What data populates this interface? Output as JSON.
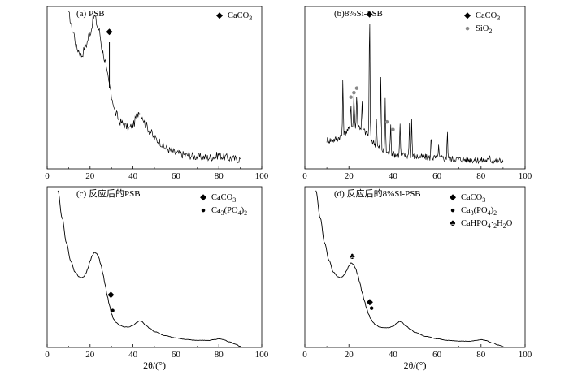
{
  "chart_data": [
    {
      "type": "line",
      "title": "(a) PSB",
      "xlim": [
        0,
        100
      ],
      "xticks": [
        "0",
        "20",
        "40",
        "60",
        "80",
        "100"
      ],
      "grid": false,
      "legend": [
        {
          "marker": "◆",
          "label": "CaCO3"
        }
      ],
      "x": [
        10,
        12,
        14,
        16,
        18,
        20,
        22,
        24,
        26,
        27,
        28,
        29,
        30,
        32,
        34,
        36,
        38,
        40,
        42,
        43,
        44,
        46,
        48,
        50,
        52,
        55,
        58,
        60,
        65,
        70,
        75,
        78,
        80,
        82,
        85,
        88,
        90
      ],
      "values": [
        95,
        85,
        74,
        70,
        76,
        84,
        94,
        86,
        72,
        66,
        58,
        52,
        44,
        34,
        29,
        27,
        25,
        27,
        33,
        36,
        33,
        27,
        23,
        19,
        17,
        13,
        11,
        9.5,
        8.5,
        7.5,
        7,
        7.5,
        8.5,
        7.5,
        6.5,
        6,
        6
      ],
      "markers": [
        {
          "x": 29,
          "value": 83,
          "symbol": "◆"
        }
      ]
    },
    {
      "type": "line",
      "title": "(b)8%Si-PSB",
      "xlim": [
        0,
        100
      ],
      "xticks": [
        "0",
        "20",
        "40",
        "60",
        "80",
        "100"
      ],
      "grid": false,
      "legend": [
        {
          "marker": "◆",
          "label": "CaCO3"
        },
        {
          "marker": "●",
          "label": "SiO2"
        }
      ],
      "peaks": [
        {
          "x": 17.3,
          "h": 48
        },
        {
          "x": 20.9,
          "h": 24
        },
        {
          "x": 22.3,
          "h": 30
        },
        {
          "x": 23.6,
          "h": 30
        },
        {
          "x": 26.0,
          "h": 24
        },
        {
          "x": 29.4,
          "h": 118
        },
        {
          "x": 32.5,
          "h": 26
        },
        {
          "x": 34.5,
          "h": 64
        },
        {
          "x": 36.5,
          "h": 46
        },
        {
          "x": 39.0,
          "h": 28
        },
        {
          "x": 43.2,
          "h": 28
        },
        {
          "x": 47.5,
          "h": 30
        },
        {
          "x": 48.5,
          "h": 34
        },
        {
          "x": 57.4,
          "h": 20
        },
        {
          "x": 60.7,
          "h": 12
        },
        {
          "x": 64.7,
          "h": 26
        },
        {
          "x": 84.0,
          "h": 6
        }
      ],
      "markers": [
        {
          "x": 29.4,
          "value": 136,
          "symbol": "◆"
        },
        {
          "x": 20.9,
          "value": 62,
          "symbol": "●"
        },
        {
          "x": 22.3,
          "value": 66,
          "symbol": "●"
        },
        {
          "x": 23.6,
          "value": 70,
          "symbol": "●"
        },
        {
          "x": 37.3,
          "value": 40,
          "symbol": "●"
        },
        {
          "x": 40.0,
          "value": 33,
          "symbol": "●"
        }
      ]
    },
    {
      "type": "line",
      "title": "(c) 反应后的PSB",
      "xlim": [
        0,
        100
      ],
      "xticks": [
        "0",
        "20",
        "40",
        "60",
        "80",
        "100"
      ],
      "xlabel": "2θ/(°)",
      "grid": false,
      "legend": [
        {
          "marker": "◆",
          "label": "CaCO3"
        },
        {
          "marker": "●",
          "label": "Ca3(PO4)2"
        }
      ],
      "x": [
        5,
        7,
        9,
        11,
        13,
        15,
        16,
        17,
        18,
        19,
        20,
        21,
        22,
        23,
        24,
        25,
        26,
        27,
        28,
        29,
        30,
        31,
        32,
        34,
        36,
        38,
        40,
        42,
        43,
        44,
        46,
        48,
        50,
        55,
        60,
        65,
        70,
        75,
        78,
        80,
        82,
        85,
        88,
        90
      ],
      "values": [
        200,
        165,
        133,
        110,
        96,
        90,
        89,
        90,
        94,
        101,
        110,
        117,
        121,
        120,
        115,
        106,
        94,
        80,
        66,
        54,
        43,
        36,
        32,
        28,
        26,
        26,
        28,
        32,
        34,
        33,
        28,
        24,
        20,
        15,
        12,
        10,
        9,
        9,
        10,
        11,
        10,
        7,
        4,
        1
      ],
      "markers": [
        {
          "x": 29.7,
          "value": 64,
          "symbol": "◆"
        },
        {
          "x": 30.5,
          "value": 44,
          "symbol": "●"
        }
      ]
    },
    {
      "type": "line",
      "title": "(d) 反应后的8%Si-PSB",
      "xlim": [
        0,
        100
      ],
      "xticks": [
        "0",
        "20",
        "40",
        "60",
        "80",
        "100"
      ],
      "xlabel": "2θ/(°)",
      "grid": false,
      "legend": [
        {
          "marker": "◆",
          "label": "CaCO3"
        },
        {
          "marker": "●",
          "label": "Ca3(PO4)2"
        },
        {
          "marker": "♣",
          "label": "CaHPO4·2H2O"
        }
      ],
      "x": [
        5,
        7,
        9,
        11,
        13,
        15,
        16,
        17,
        18,
        19,
        20,
        21,
        22,
        23,
        24,
        25,
        26,
        27,
        28,
        29,
        30,
        31,
        32,
        34,
        36,
        38,
        40,
        42,
        43,
        44,
        46,
        48,
        50,
        55,
        60,
        65,
        70,
        75,
        78,
        80,
        82,
        85,
        88,
        90
      ],
      "values": [
        200,
        165,
        133,
        111,
        96,
        90,
        89,
        90,
        93,
        98,
        104,
        108,
        106,
        101,
        93,
        82,
        70,
        60,
        50,
        42,
        36,
        32,
        29,
        26,
        25,
        25,
        27,
        31,
        33,
        32,
        27,
        23,
        19,
        14,
        11,
        9,
        8,
        8,
        9,
        10,
        9,
        6,
        3,
        1
      ],
      "markers": [
        {
          "x": 21.5,
          "value": 113,
          "symbol": "♣"
        },
        {
          "x": 29.5,
          "value": 55,
          "symbol": "◆"
        },
        {
          "x": 30.3,
          "value": 47,
          "symbol": "●"
        }
      ]
    }
  ]
}
